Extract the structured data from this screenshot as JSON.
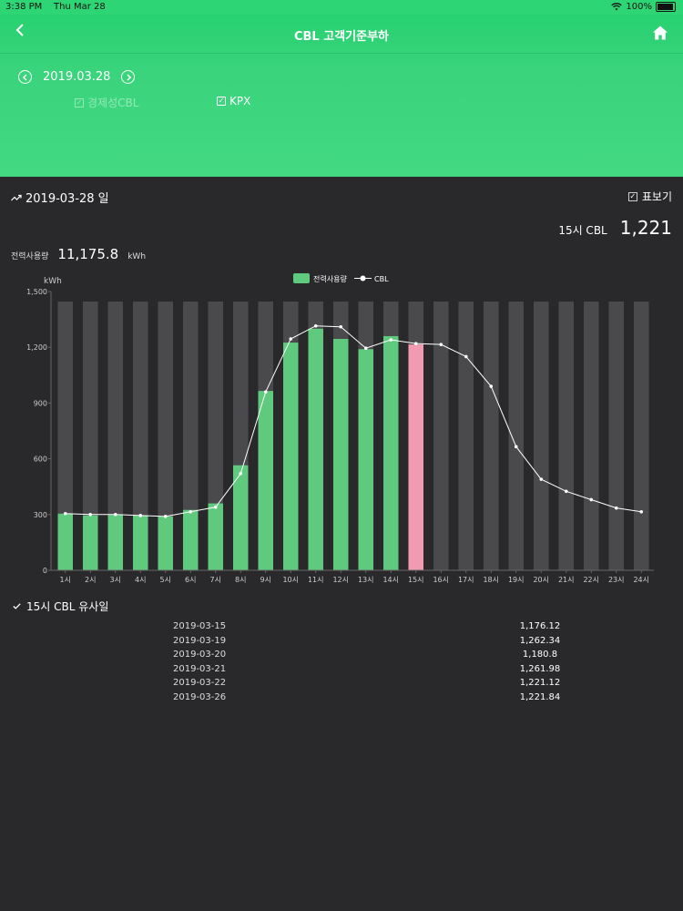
{
  "status_bar": {
    "time": "3:38 PM",
    "date": "Thu Mar 28",
    "battery": "100%"
  },
  "nav": {
    "title": "CBL 고객기준부하"
  },
  "date_selector": {
    "date": "2019.03.28"
  },
  "filters": {
    "cbl_label": "경제성CBL",
    "kpx_label": "KPX"
  },
  "summary": {
    "date_title": "2019-03-28 일",
    "table_toggle": "표보기",
    "cbl_label": "15시 CBL",
    "cbl_value": "1,221",
    "usage_label": "전력사용량",
    "usage_value": "11,175.8",
    "usage_unit": "kWh"
  },
  "similar": {
    "title": "15시 CBL 유사일",
    "rows": [
      {
        "date": "2019-03-15",
        "value": "1,176.12"
      },
      {
        "date": "2019-03-19",
        "value": "1,262.34"
      },
      {
        "date": "2019-03-20",
        "value": "1,180.8"
      },
      {
        "date": "2019-03-21",
        "value": "1,261.98"
      },
      {
        "date": "2019-03-22",
        "value": "1,221.12"
      },
      {
        "date": "2019-03-26",
        "value": "1,221.84"
      }
    ]
  },
  "colors": {
    "usage_bar": "#5fca7e",
    "current_bar": "#f29bb0",
    "background_bar": "#4a494b",
    "cbl_line": "#ffffff"
  },
  "chart_data": {
    "type": "bar",
    "ylabel": "kWh",
    "ylim": [
      0,
      1500
    ],
    "yticks": [
      "0",
      "300",
      "600",
      "900",
      "1,200",
      "1,500"
    ],
    "categories": [
      "1시",
      "2시",
      "3시",
      "4시",
      "5시",
      "6시",
      "7시",
      "8시",
      "9시",
      "10시",
      "11시",
      "12시",
      "13시",
      "14시",
      "15시",
      "16시",
      "17시",
      "18시",
      "19시",
      "20시",
      "21시",
      "22시",
      "23시",
      "24시"
    ],
    "legend": [
      "전력사용량",
      "CBL"
    ],
    "highlight_category": "15시",
    "series": [
      {
        "name": "전력사용량",
        "type": "bar",
        "values": [
          305,
          295,
          298,
          295,
          290,
          325,
          360,
          565,
          965,
          1225,
          1300,
          1245,
          1190,
          1260,
          1215,
          null,
          null,
          null,
          null,
          null,
          null,
          null,
          null,
          null
        ]
      },
      {
        "name": "CBL",
        "type": "line",
        "values": [
          305,
          300,
          300,
          295,
          290,
          315,
          340,
          520,
          960,
          1245,
          1315,
          1310,
          1195,
          1240,
          1220,
          1215,
          1150,
          990,
          665,
          490,
          425,
          380,
          335,
          315
        ]
      }
    ]
  }
}
